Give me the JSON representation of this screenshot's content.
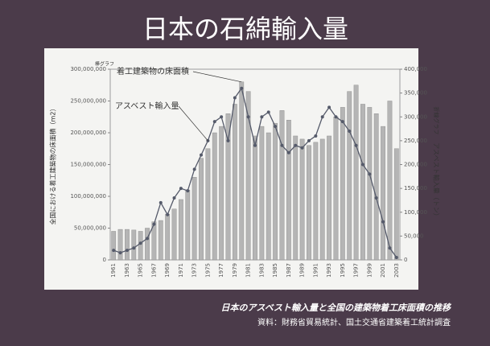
{
  "chart_data": {
    "type": "bar",
    "title": "日本の石綿輸入量",
    "caption": "日本のアスベスト輸入量と全国の建築物着工床面積の推移",
    "source": "資料：財務省貿易統計、国土交通省建築着工統計調査",
    "ylabel": "全国における着工建築物の床面積（m2）",
    "ylabel_note": "棒グラフ",
    "y2label": "アスベスト輸入量（トン）",
    "y2label_note": "折線グラフ",
    "categories": [
      "1961",
      null,
      "1963",
      null,
      "1965",
      null,
      "1967",
      null,
      "1969",
      null,
      "1971",
      null,
      "1973",
      null,
      "1975",
      null,
      "1977",
      null,
      "1979",
      null,
      "1981",
      null,
      "1983",
      null,
      "1985",
      null,
      "1987",
      null,
      "1989",
      null,
      "1991",
      null,
      "1993",
      null,
      "1995",
      null,
      "1997",
      null,
      "1999",
      null,
      "2001",
      null,
      "2003"
    ],
    "series": [
      {
        "name": "着工建築物の床面積",
        "type": "bar",
        "color": "#b5b5b5",
        "values": [
          45000000,
          48000000,
          48000000,
          47000000,
          45000000,
          50000000,
          60000000,
          62000000,
          72000000,
          80000000,
          95000000,
          110000000,
          130000000,
          160000000,
          175000000,
          200000000,
          210000000,
          230000000,
          245000000,
          280000000,
          265000000,
          195000000,
          210000000,
          200000000,
          215000000,
          235000000,
          220000000,
          195000000,
          190000000,
          180000000,
          185000000,
          190000000,
          195000000,
          225000000,
          240000000,
          265000000,
          275000000,
          245000000,
          240000000,
          230000000,
          210000000,
          250000000,
          175000000
        ]
      },
      {
        "name": "アスベスト輸入量",
        "type": "line",
        "axis": "y2",
        "color": "#555a6a",
        "values": [
          20000,
          15000,
          20000,
          25000,
          35000,
          45000,
          75000,
          120000,
          95000,
          130000,
          150000,
          145000,
          190000,
          220000,
          250000,
          290000,
          300000,
          250000,
          340000,
          360000,
          300000,
          240000,
          300000,
          310000,
          280000,
          240000,
          225000,
          240000,
          235000,
          250000,
          260000,
          300000,
          320000,
          300000,
          290000,
          270000,
          240000,
          200000,
          180000,
          130000,
          80000,
          25000,
          5000
        ]
      }
    ],
    "ylim": [
      0,
      300000000
    ],
    "yticks": [
      {
        "value": 0,
        "label": "0"
      },
      {
        "value": 50000000,
        "label": "50,000,000"
      },
      {
        "value": 100000000,
        "label": "100,000,000"
      },
      {
        "value": 150000000,
        "label": "150,000,000"
      },
      {
        "value": 200000000,
        "label": "200,000,000"
      },
      {
        "value": 250000000,
        "label": "250,000,000"
      },
      {
        "value": 300000000,
        "label": "300,000,000"
      }
    ],
    "y2lim": [
      0,
      400000
    ],
    "y2ticks": [
      0,
      {
        "value": 50000,
        "label": "50,000"
      },
      {
        "value": 100000,
        "label": "100,000"
      },
      {
        "value": 150000,
        "label": "150,000"
      },
      {
        "value": 200000,
        "label": "200,000"
      },
      {
        "value": 250000,
        "label": "250,000"
      },
      {
        "value": 300000,
        "label": "300,000"
      },
      {
        "value": 350000,
        "label": "350,000"
      },
      {
        "value": 400000,
        "label": "400,000"
      }
    ]
  }
}
